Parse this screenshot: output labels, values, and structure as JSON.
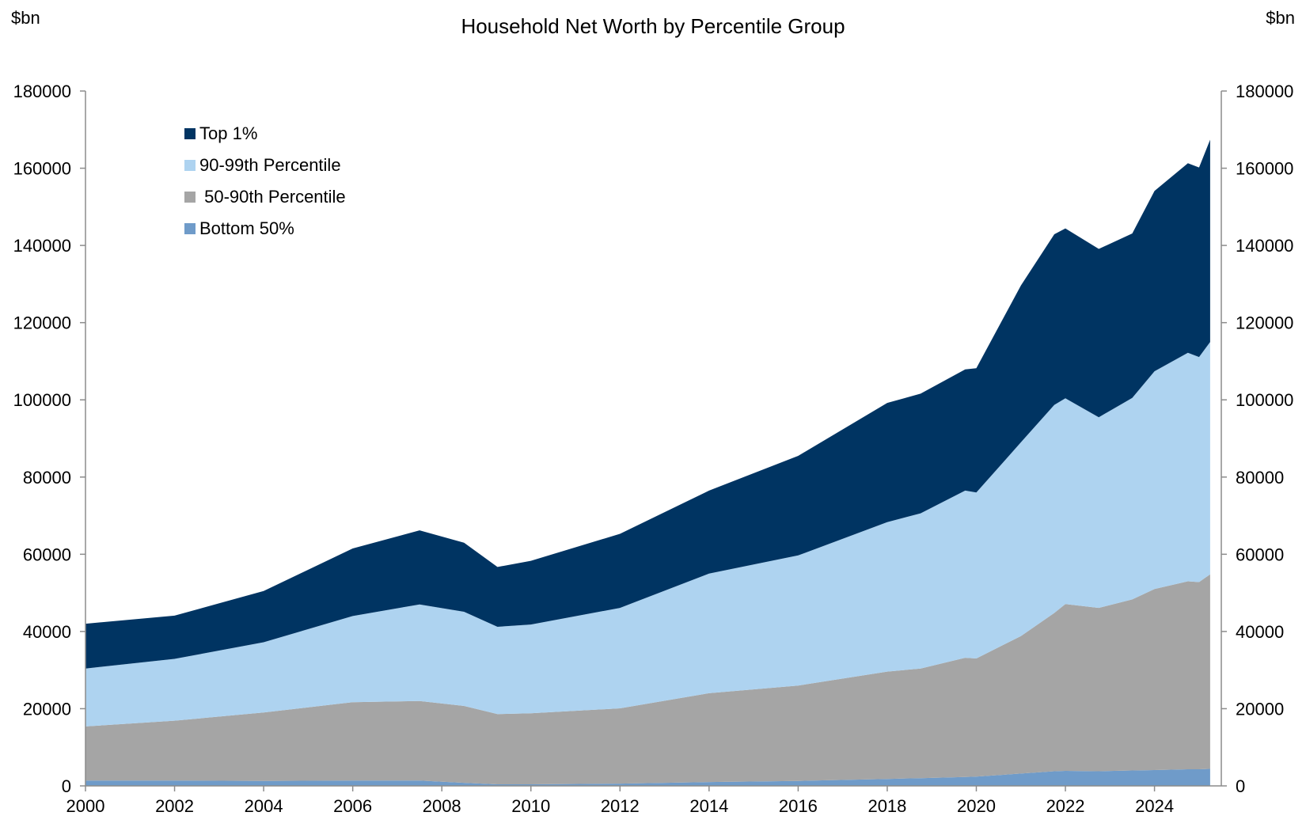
{
  "chart_data": {
    "type": "area",
    "stacked": true,
    "title": "Household Net Worth by Percentile Group",
    "y_unit_left": "$bn",
    "y_unit_right": "$bn",
    "ylim": [
      0,
      180000
    ],
    "yticks": [
      0,
      20000,
      40000,
      60000,
      80000,
      100000,
      120000,
      140000,
      160000,
      180000
    ],
    "xlim": [
      2000.0,
      2025.5
    ],
    "xticks": [
      2000,
      2002,
      2004,
      2006,
      2008,
      2010,
      2012,
      2014,
      2016,
      2018,
      2020,
      2022,
      2024
    ],
    "legend_position": "top-left",
    "legend": [
      "Top 1%",
      "90-99th Percentile",
      " 50-90th Percentile",
      "Bottom 50%"
    ],
    "colors": {
      "top1": "#003462",
      "p90_99": "#aed3f0",
      "p50_90": "#a5a5a5",
      "bottom50": "#6f9bc9"
    },
    "x": [
      2000.0,
      2002.0,
      2004.0,
      2006.0,
      2007.5,
      2008.5,
      2009.25,
      2010.0,
      2012.0,
      2014.0,
      2016.0,
      2018.0,
      2018.75,
      2019.75,
      2020.0,
      2021.0,
      2021.75,
      2022.0,
      2022.75,
      2023.5,
      2024.0,
      2024.75,
      2025.0,
      2025.25
    ],
    "series": [
      {
        "key": "bottom50",
        "name": "Bottom 50%",
        "values": [
          1400,
          1400,
          1300,
          1400,
          1400,
          800,
          400,
          400,
          600,
          1000,
          1300,
          1800,
          2000,
          2300,
          2400,
          3200,
          3800,
          3900,
          3800,
          4000,
          4100,
          4300,
          4300,
          4400
        ]
      },
      {
        "key": "p50_90",
        "name": " 50-90th Percentile",
        "values": [
          14000,
          15500,
          17700,
          20300,
          20600,
          19900,
          18200,
          18400,
          19500,
          23000,
          24700,
          27800,
          28400,
          30900,
          30600,
          35600,
          41000,
          43200,
          42300,
          44300,
          46900,
          48700,
          48500,
          50400
        ]
      },
      {
        "key": "p90_99",
        "name": "90-99th Percentile",
        "values": [
          15000,
          16000,
          18200,
          22300,
          25000,
          24400,
          22600,
          23000,
          26000,
          31000,
          33700,
          38700,
          40200,
          43300,
          43000,
          50200,
          53900,
          53300,
          49400,
          52200,
          56400,
          59200,
          58300,
          60200
        ]
      },
      {
        "key": "top1",
        "name": "Top 1%",
        "values": [
          11600,
          11200,
          13300,
          17500,
          19200,
          17900,
          15500,
          16500,
          19200,
          21500,
          25800,
          30900,
          31000,
          31400,
          32200,
          40600,
          44200,
          44000,
          43600,
          42600,
          46700,
          49100,
          49100,
          52400
        ]
      }
    ]
  }
}
